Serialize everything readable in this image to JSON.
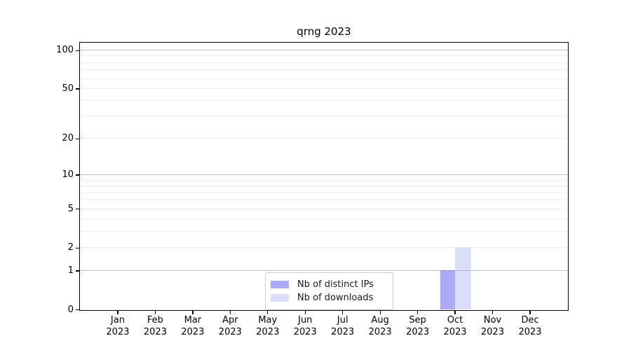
{
  "chart_data": {
    "type": "bar",
    "title": "qrng 2023",
    "categories": [
      {
        "month": "Jan",
        "year": "2023"
      },
      {
        "month": "Feb",
        "year": "2023"
      },
      {
        "month": "Mar",
        "year": "2023"
      },
      {
        "month": "Apr",
        "year": "2023"
      },
      {
        "month": "May",
        "year": "2023"
      },
      {
        "month": "Jun",
        "year": "2023"
      },
      {
        "month": "Jul",
        "year": "2023"
      },
      {
        "month": "Aug",
        "year": "2023"
      },
      {
        "month": "Sep",
        "year": "2023"
      },
      {
        "month": "Oct",
        "year": "2023"
      },
      {
        "month": "Nov",
        "year": "2023"
      },
      {
        "month": "Dec",
        "year": "2023"
      }
    ],
    "series": [
      {
        "name": "Nb of distinct IPs",
        "color": "rgba(100,100,240,0.55)",
        "values": [
          0,
          0,
          0,
          0,
          0,
          0,
          0,
          0,
          0,
          1,
          0,
          0
        ]
      },
      {
        "name": "Nb of downloads",
        "color": "rgba(100,100,240,0.22)",
        "values": [
          0,
          0,
          0,
          0,
          0,
          0,
          0,
          0,
          0,
          2,
          0,
          0
        ]
      }
    ],
    "y_axis": {
      "scale": "log1p",
      "ticks": [
        0,
        1,
        2,
        5,
        10,
        20,
        50,
        100
      ],
      "range": [
        0,
        114
      ],
      "major_gridlines": [
        1,
        10,
        100
      ],
      "minor_gridlines": [
        2,
        3,
        4,
        5,
        6,
        7,
        8,
        9,
        20,
        30,
        40,
        50,
        60,
        70,
        80,
        90
      ]
    },
    "grid": {
      "major_color": "#c6c6c6",
      "minor_color": "#ececec"
    },
    "legend": {
      "position": "lower center"
    },
    "colors": {
      "axis": "#000000",
      "text": "#000000"
    }
  }
}
